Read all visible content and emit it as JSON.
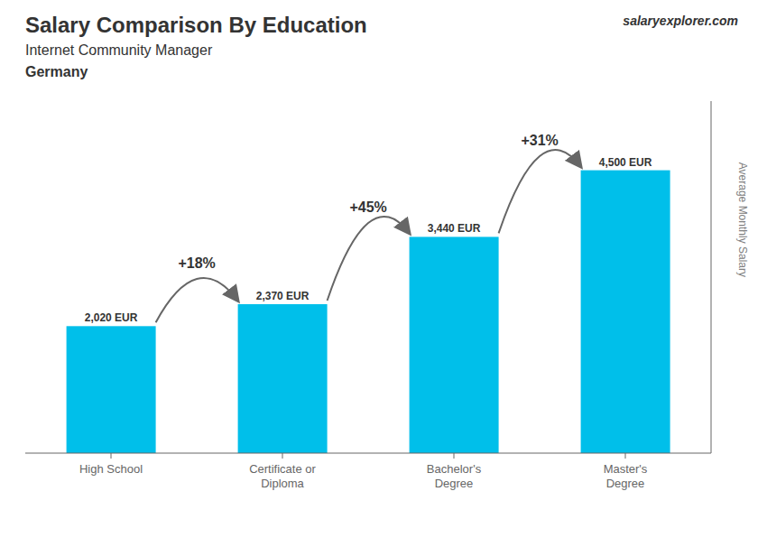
{
  "chart_data": {
    "type": "bar",
    "title": "Salary Comparison By Education",
    "subtitle": "Internet Community Manager",
    "y_label": "Average Monthly Salary",
    "categories": [
      "High School",
      "Certificate or\nDiploma",
      "Bachelor's\nDegree",
      "Master's\nDegree"
    ],
    "values": [
      2020,
      2370,
      3440,
      4500
    ],
    "value_labels": [
      "2,020 EUR",
      "2,370 EUR",
      "3,440 EUR",
      "4,500 EUR"
    ],
    "data_labels": true,
    "color": "#00bfea",
    "ylim": [
      0,
      5600
    ],
    "tick_labels": "x",
    "grid": false,
    "annotations": [
      {
        "text": "Germany"
      },
      {
        "text": "salaryexplorer.com"
      },
      {
        "text": "+18%",
        "from": "High School",
        "to": "Certificate or\nDiploma"
      },
      {
        "text": "+45%",
        "from": "Certificate or\nDiploma",
        "to": "Bachelor's\nDegree"
      },
      {
        "text": "+31%",
        "from": "Bachelor's\nDegree",
        "to": "Master's\nDegree"
      }
    ]
  }
}
